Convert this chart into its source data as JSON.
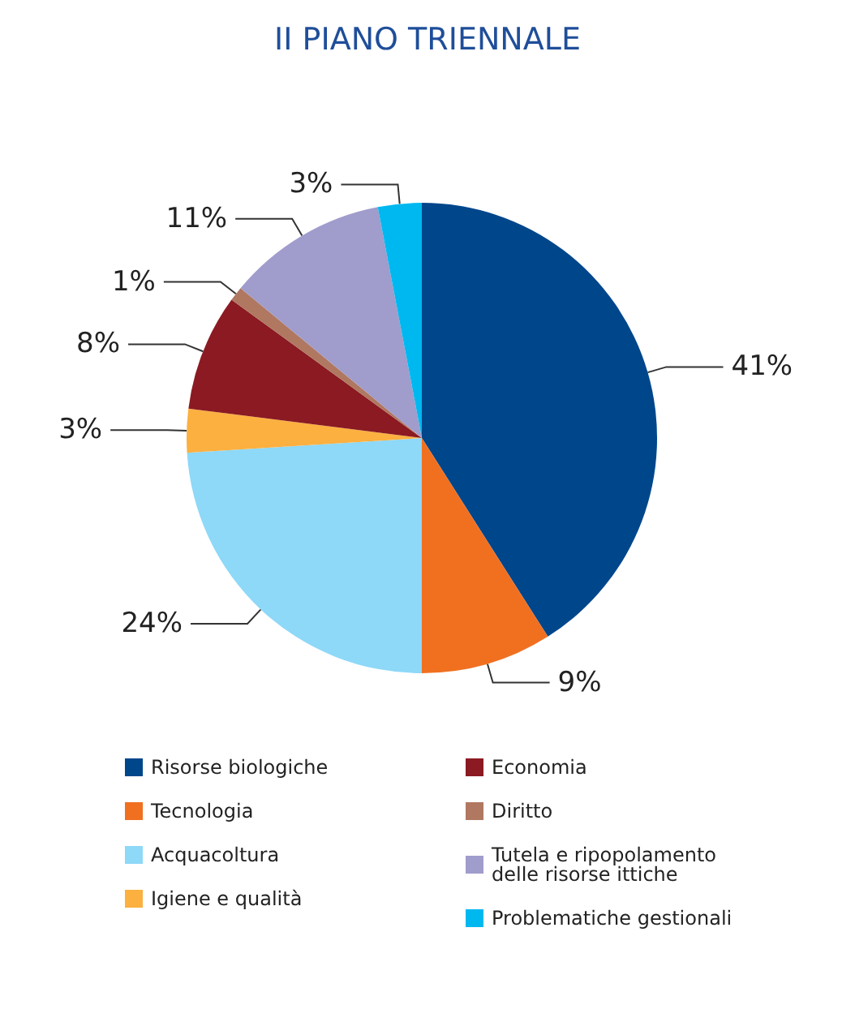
{
  "chart_data": {
    "type": "pie",
    "title": "II PIANO TRIENNALE",
    "categories": [
      "Risorse biologiche",
      "Tecnologia",
      "Acquacoltura",
      "Igiene e qualità",
      "Economia",
      "Diritto",
      "Tutela e ripopolamento delle risorse ittiche",
      "Problematiche gestionali"
    ],
    "values": [
      41,
      9,
      24,
      3,
      8,
      1,
      11,
      3
    ],
    "value_labels": [
      "41%",
      "9%",
      "24%",
      "3%",
      "8%",
      "1%",
      "11%",
      "3%"
    ],
    "colors": [
      "#00468b",
      "#f07020",
      "#8ed8f8",
      "#fbb040",
      "#8b1a22",
      "#b07860",
      "#a09ccc",
      "#00b8f0"
    ],
    "legend": "bottom"
  }
}
